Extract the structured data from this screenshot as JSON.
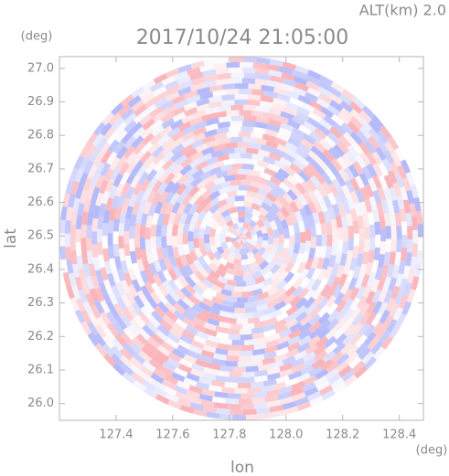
{
  "chart_data": {
    "type": "radar-ppi",
    "title": "2017/10/24 21:05:00",
    "subtitle": "ALT(km) 2.0",
    "x_label": "lon",
    "y_label": "lat",
    "x_unit": "(deg)",
    "y_unit": "(deg)",
    "xlim": [
      127.2,
      128.485
    ],
    "ylim": [
      25.95,
      27.035
    ],
    "xticks": [
      127.4,
      127.6,
      127.8,
      {
        "value": 128,
        "label": "128.0"
      },
      128.2,
      128.4
    ],
    "yticks": [
      {
        "value": 26,
        "label": "26.0"
      },
      26.1,
      26.2,
      26.3,
      26.4,
      26.5,
      26.6,
      26.7,
      26.8,
      26.9,
      {
        "value": 27,
        "label": "27.0"
      }
    ]
  }
}
